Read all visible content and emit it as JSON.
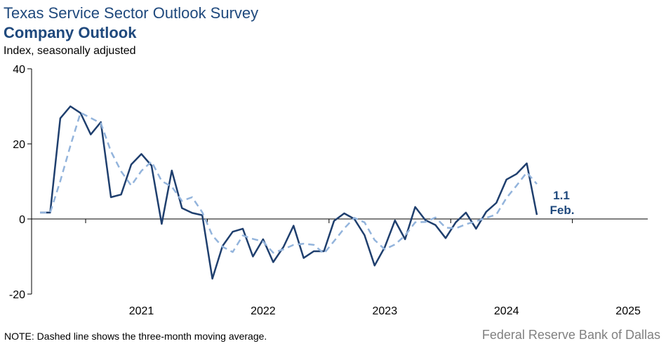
{
  "header": {
    "title": "Texas Service Sector Outlook Survey",
    "subtitle": "Company Outlook",
    "ylabel": "Index, seasonally adjusted"
  },
  "footer": {
    "note": "NOTE: Dashed line shows the three-month  moving average.",
    "source": "Federal Reserve Bank of Dallas"
  },
  "colors": {
    "index": "#1f3f6e",
    "moving_average": "#93b4dc",
    "annotation": "#1f497d"
  },
  "chart_data": {
    "type": "line",
    "title": "Company Outlook",
    "ylabel": "Index, seasonally adjusted",
    "ylim": [
      -20,
      40
    ],
    "yticks": [
      -20,
      0,
      20,
      40
    ],
    "x_labels": [
      "2021",
      "2022",
      "2023",
      "2024",
      "2025"
    ],
    "x_start": "2020-08",
    "grid": false,
    "series": [
      {
        "key": "index",
        "style": "solid",
        "values": [
          1.7,
          1.7,
          26.8,
          30.0,
          28.2,
          22.5,
          25.8,
          5.8,
          6.5,
          14.5,
          17.3,
          14.2,
          -1.3,
          12.9,
          2.9,
          1.6,
          1.0,
          -15.9,
          -7.2,
          -3.4,
          -2.6,
          -10.0,
          -5.4,
          -11.5,
          -7.5,
          -1.8,
          -10.4,
          -8.6,
          -8.6,
          -0.5,
          1.5,
          0.0,
          -4.3,
          -12.4,
          -7.5,
          -0.4,
          -5.4,
          3.2,
          -0.3,
          -1.6,
          -5.1,
          -0.9,
          1.7,
          -2.6,
          1.9,
          4.3,
          10.5,
          12.0,
          14.8,
          1.1
        ]
      },
      {
        "key": "moving_average",
        "style": "dashed",
        "values": [
          1.7,
          1.7,
          10.1,
          19.5,
          28.3,
          26.9,
          25.5,
          18.0,
          12.7,
          8.9,
          12.8,
          15.3,
          10.1,
          8.6,
          4.8,
          5.8,
          1.8,
          -4.4,
          -7.4,
          -8.8,
          -4.4,
          -5.3,
          -6.0,
          -9.0,
          -8.1,
          -6.9,
          -6.6,
          -6.9,
          -9.2,
          -5.9,
          -2.5,
          0.3,
          -0.9,
          -5.6,
          -8.1,
          -6.8,
          -4.4,
          -0.9,
          -0.8,
          0.4,
          -2.3,
          -2.5,
          -1.4,
          -0.6,
          0.3,
          1.2,
          5.6,
          8.9,
          12.4,
          9.3
        ]
      }
    ],
    "annotation": {
      "value": "1.1",
      "label": "Feb."
    }
  }
}
